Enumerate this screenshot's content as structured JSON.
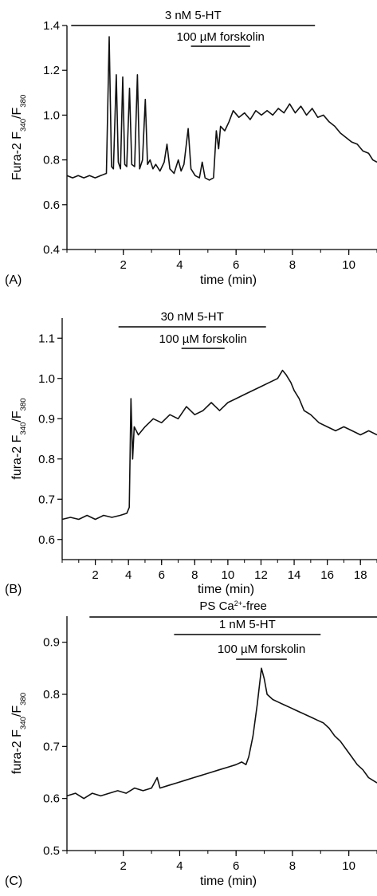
{
  "chart_data": [
    {
      "type": "line",
      "panel_label": "(A)",
      "xlabel": "time (min)",
      "ylabel_parts": [
        "Fura-2 F",
        "340",
        "/F",
        "380"
      ],
      "xlim": [
        0,
        11
      ],
      "ylim": [
        0.4,
        1.4
      ],
      "xticks": [
        2,
        4,
        6,
        8,
        10
      ],
      "yticks": [
        0.4,
        0.6,
        0.8,
        1.0,
        1.2,
        1.4
      ],
      "ytick_labels": [
        "0.4",
        "0.6",
        "0.8",
        "1.0",
        "1.2",
        "1.4"
      ],
      "bars": [
        {
          "label_parts": [
            "3 nM 5-HT"
          ],
          "x": [
            0.15,
            8.8
          ]
        },
        {
          "label_parts": [
            "100 µM forskolin"
          ],
          "x": [
            4.4,
            6.5
          ]
        }
      ],
      "series": [
        {
          "points": [
            [
              0.0,
              0.73
            ],
            [
              0.2,
              0.72
            ],
            [
              0.4,
              0.73
            ],
            [
              0.6,
              0.72
            ],
            [
              0.8,
              0.73
            ],
            [
              1.0,
              0.72
            ],
            [
              1.2,
              0.73
            ],
            [
              1.4,
              0.74
            ],
            [
              1.5,
              1.35
            ],
            [
              1.58,
              0.77
            ],
            [
              1.65,
              0.76
            ],
            [
              1.75,
              1.18
            ],
            [
              1.82,
              0.79
            ],
            [
              1.9,
              0.76
            ],
            [
              1.98,
              1.17
            ],
            [
              2.05,
              0.78
            ],
            [
              2.12,
              0.77
            ],
            [
              2.22,
              1.12
            ],
            [
              2.3,
              0.78
            ],
            [
              2.4,
              0.77
            ],
            [
              2.5,
              1.18
            ],
            [
              2.58,
              0.76
            ],
            [
              2.68,
              0.8
            ],
            [
              2.78,
              1.07
            ],
            [
              2.86,
              0.78
            ],
            [
              2.95,
              0.8
            ],
            [
              3.05,
              0.76
            ],
            [
              3.15,
              0.78
            ],
            [
              3.3,
              0.75
            ],
            [
              3.45,
              0.79
            ],
            [
              3.55,
              0.87
            ],
            [
              3.65,
              0.76
            ],
            [
              3.8,
              0.74
            ],
            [
              3.95,
              0.8
            ],
            [
              4.05,
              0.75
            ],
            [
              4.15,
              0.78
            ],
            [
              4.3,
              0.94
            ],
            [
              4.4,
              0.76
            ],
            [
              4.55,
              0.73
            ],
            [
              4.7,
              0.72
            ],
            [
              4.8,
              0.79
            ],
            [
              4.9,
              0.72
            ],
            [
              5.05,
              0.71
            ],
            [
              5.2,
              0.72
            ],
            [
              5.3,
              0.93
            ],
            [
              5.38,
              0.85
            ],
            [
              5.45,
              0.95
            ],
            [
              5.6,
              0.93
            ],
            [
              5.75,
              0.97
            ],
            [
              5.9,
              1.02
            ],
            [
              6.1,
              0.99
            ],
            [
              6.3,
              1.01
            ],
            [
              6.5,
              0.98
            ],
            [
              6.7,
              1.02
            ],
            [
              6.9,
              1.0
            ],
            [
              7.1,
              1.02
            ],
            [
              7.3,
              1.0
            ],
            [
              7.5,
              1.03
            ],
            [
              7.7,
              1.01
            ],
            [
              7.9,
              1.05
            ],
            [
              8.1,
              1.01
            ],
            [
              8.3,
              1.04
            ],
            [
              8.5,
              1.0
            ],
            [
              8.7,
              1.03
            ],
            [
              8.9,
              0.99
            ],
            [
              9.1,
              1.0
            ],
            [
              9.3,
              0.97
            ],
            [
              9.5,
              0.95
            ],
            [
              9.7,
              0.92
            ],
            [
              9.9,
              0.9
            ],
            [
              10.1,
              0.88
            ],
            [
              10.3,
              0.87
            ],
            [
              10.5,
              0.84
            ],
            [
              10.7,
              0.83
            ],
            [
              10.85,
              0.8
            ],
            [
              11.0,
              0.79
            ]
          ]
        }
      ]
    },
    {
      "type": "line",
      "panel_label": "(B)",
      "xlabel": "time (min)",
      "ylabel_parts": [
        "fura-2 F",
        "340",
        "/F",
        "380"
      ],
      "xlim": [
        0,
        19
      ],
      "ylim": [
        0.55,
        1.15
      ],
      "xticks": [
        2,
        4,
        6,
        8,
        10,
        12,
        14,
        16,
        18
      ],
      "yticks": [
        0.6,
        0.7,
        0.8,
        0.9,
        1.0,
        1.1
      ],
      "ytick_labels": [
        "0.6",
        "0.7",
        "0.8",
        "0.9",
        "1.0",
        "1.1"
      ],
      "bars": [
        {
          "label_parts": [
            "30 nM 5-HT"
          ],
          "x": [
            3.4,
            12.3
          ]
        },
        {
          "label_parts": [
            "100 µM forskolin"
          ],
          "x": [
            7.2,
            9.8
          ]
        }
      ],
      "series": [
        {
          "points": [
            [
              0.0,
              0.65
            ],
            [
              0.5,
              0.655
            ],
            [
              1.0,
              0.65
            ],
            [
              1.5,
              0.66
            ],
            [
              2.0,
              0.65
            ],
            [
              2.5,
              0.66
            ],
            [
              3.0,
              0.655
            ],
            [
              3.5,
              0.66
            ],
            [
              3.9,
              0.665
            ],
            [
              4.05,
              0.68
            ],
            [
              4.15,
              0.95
            ],
            [
              4.25,
              0.8
            ],
            [
              4.35,
              0.88
            ],
            [
              4.6,
              0.86
            ],
            [
              5.0,
              0.88
            ],
            [
              5.5,
              0.9
            ],
            [
              6.0,
              0.89
            ],
            [
              6.5,
              0.91
            ],
            [
              7.0,
              0.9
            ],
            [
              7.5,
              0.93
            ],
            [
              8.0,
              0.91
            ],
            [
              8.5,
              0.92
            ],
            [
              9.0,
              0.94
            ],
            [
              9.5,
              0.92
            ],
            [
              10.0,
              0.94
            ],
            [
              10.5,
              0.95
            ],
            [
              11.0,
              0.96
            ],
            [
              11.5,
              0.97
            ],
            [
              12.0,
              0.98
            ],
            [
              12.5,
              0.99
            ],
            [
              13.0,
              1.0
            ],
            [
              13.3,
              1.02
            ],
            [
              13.5,
              1.01
            ],
            [
              13.8,
              0.99
            ],
            [
              14.0,
              0.97
            ],
            [
              14.3,
              0.95
            ],
            [
              14.6,
              0.92
            ],
            [
              15.0,
              0.91
            ],
            [
              15.5,
              0.89
            ],
            [
              16.0,
              0.88
            ],
            [
              16.5,
              0.87
            ],
            [
              17.0,
              0.88
            ],
            [
              17.5,
              0.87
            ],
            [
              18.0,
              0.86
            ],
            [
              18.5,
              0.87
            ],
            [
              19.0,
              0.86
            ]
          ]
        }
      ]
    },
    {
      "type": "line",
      "panel_label": "(C)",
      "xlabel": "time (min)",
      "ylabel_parts": [
        "fura-2 F",
        "340",
        "/F",
        "380"
      ],
      "xlim": [
        0,
        11
      ],
      "ylim": [
        0.5,
        0.95
      ],
      "xticks": [
        2,
        4,
        6,
        8,
        10
      ],
      "yticks": [
        0.5,
        0.6,
        0.7,
        0.8,
        0.9
      ],
      "ytick_labels": [
        "0.5",
        "0.6",
        "0.7",
        "0.8",
        "0.9"
      ],
      "bars": [
        {
          "label_parts": [
            "PS Ca",
            "2+",
            "-free"
          ],
          "x": [
            0.8,
            11.0
          ]
        },
        {
          "label_parts": [
            "1 nM 5-HT"
          ],
          "x": [
            3.8,
            9.0
          ]
        },
        {
          "label_parts": [
            "100 µM forskolin"
          ],
          "x": [
            6.0,
            7.8
          ]
        }
      ],
      "series": [
        {
          "points": [
            [
              0.0,
              0.605
            ],
            [
              0.3,
              0.61
            ],
            [
              0.6,
              0.6
            ],
            [
              0.9,
              0.61
            ],
            [
              1.2,
              0.605
            ],
            [
              1.5,
              0.61
            ],
            [
              1.8,
              0.615
            ],
            [
              2.1,
              0.61
            ],
            [
              2.4,
              0.62
            ],
            [
              2.7,
              0.615
            ],
            [
              3.0,
              0.62
            ],
            [
              3.2,
              0.64
            ],
            [
              3.3,
              0.62
            ],
            [
              3.6,
              0.625
            ],
            [
              3.9,
              0.63
            ],
            [
              4.2,
              0.635
            ],
            [
              4.5,
              0.64
            ],
            [
              4.8,
              0.645
            ],
            [
              5.1,
              0.65
            ],
            [
              5.4,
              0.655
            ],
            [
              5.7,
              0.66
            ],
            [
              6.0,
              0.665
            ],
            [
              6.2,
              0.67
            ],
            [
              6.35,
              0.665
            ],
            [
              6.45,
              0.68
            ],
            [
              6.6,
              0.72
            ],
            [
              6.75,
              0.78
            ],
            [
              6.9,
              0.85
            ],
            [
              7.0,
              0.83
            ],
            [
              7.1,
              0.8
            ],
            [
              7.3,
              0.79
            ],
            [
              7.5,
              0.785
            ],
            [
              7.7,
              0.78
            ],
            [
              7.9,
              0.775
            ],
            [
              8.1,
              0.77
            ],
            [
              8.3,
              0.765
            ],
            [
              8.5,
              0.76
            ],
            [
              8.7,
              0.755
            ],
            [
              8.9,
              0.75
            ],
            [
              9.1,
              0.745
            ],
            [
              9.3,
              0.735
            ],
            [
              9.5,
              0.72
            ],
            [
              9.7,
              0.71
            ],
            [
              9.9,
              0.695
            ],
            [
              10.1,
              0.68
            ],
            [
              10.3,
              0.665
            ],
            [
              10.5,
              0.655
            ],
            [
              10.7,
              0.64
            ],
            [
              10.85,
              0.635
            ],
            [
              11.0,
              0.63
            ]
          ]
        }
      ]
    }
  ]
}
